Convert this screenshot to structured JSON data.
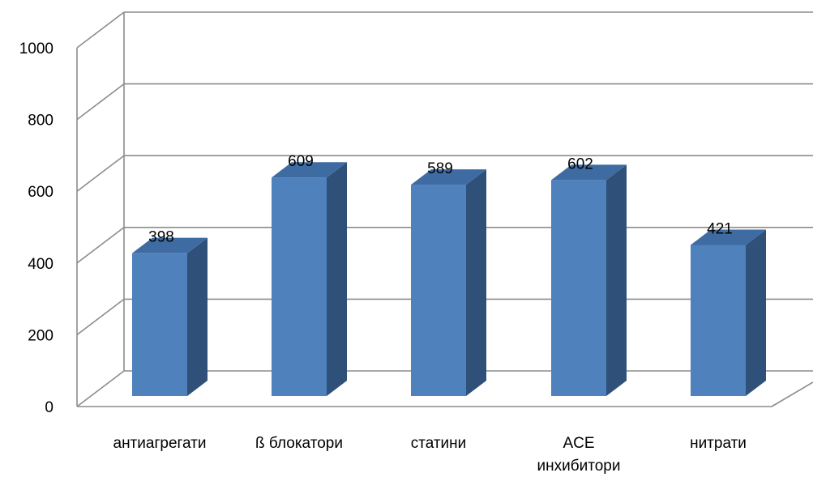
{
  "chart_data": {
    "type": "bar",
    "style": "3d-column",
    "categories": [
      "антиагрегати",
      "ß блокатори",
      "статини",
      "ACE инхибитори",
      "нитрати"
    ],
    "category_lines": [
      [
        "антиагрегати"
      ],
      [
        "ß блокатори"
      ],
      [
        "статини"
      ],
      [
        "ACE",
        "инхибитори"
      ],
      [
        "нитрати"
      ]
    ],
    "values": [
      398,
      609,
      589,
      602,
      421
    ],
    "data_labels": [
      "398",
      "609",
      "589",
      "602",
      "421"
    ],
    "title": "",
    "xlabel": "",
    "ylabel": "",
    "ylim": [
      0,
      1000
    ],
    "yticks": [
      "0",
      "200",
      "400",
      "600",
      "800",
      "1000"
    ],
    "grid": true,
    "legend": "none",
    "colors": {
      "bar_front": "#4F81BD",
      "bar_side": "#2F5078",
      "bar_top": "#3F6BA3",
      "grid": "#8C8C8C"
    }
  }
}
